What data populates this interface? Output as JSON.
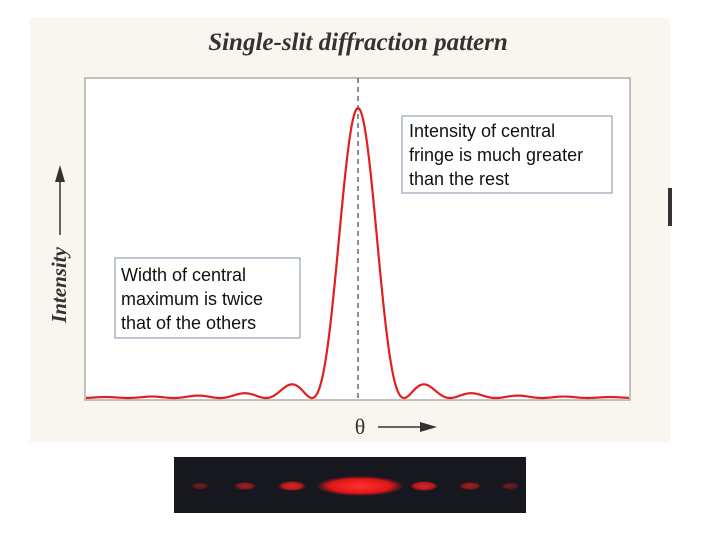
{
  "header": {
    "title": "Single-slit diffraction pattern"
  },
  "axes": {
    "y_label": "Intensity",
    "x_label": "θ"
  },
  "annotations": [
    {
      "lines": [
        "Intensity of central",
        "fringe is much greater",
        "than the rest"
      ]
    },
    {
      "lines": [
        "Width of central",
        "maximum is twice",
        "that of the others"
      ]
    }
  ]
}
